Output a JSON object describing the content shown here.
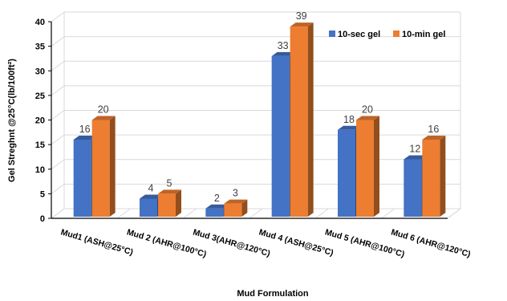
{
  "chart_data": {
    "type": "bar",
    "categories": [
      "Mud1 (ASH@25°C)",
      "Mud 2 (AHR@100°C)",
      "Mud 3(AHR@120°C)",
      "Mud 4 (ASH@25°C)",
      "Mud 5 (AHR@100°C)",
      "Mud 6 (AHR@120°C)"
    ],
    "series": [
      {
        "name": "10-sec gel",
        "values": [
          16,
          4,
          2,
          33,
          18,
          12
        ],
        "color": "#4472C4"
      },
      {
        "name": "10-min gel",
        "values": [
          20,
          5,
          3,
          39,
          20,
          16
        ],
        "color": "#ED7D31"
      }
    ],
    "xlabel": "Mud Formulation",
    "ylabel": "Gel Streghnt @25°C(lb/100ft²)",
    "ylim": [
      0,
      40
    ],
    "yticks": [
      0,
      5,
      10,
      15,
      20,
      25,
      30,
      35,
      40
    ],
    "grid": true,
    "legend_position": "top-right",
    "style": "3d-column"
  }
}
